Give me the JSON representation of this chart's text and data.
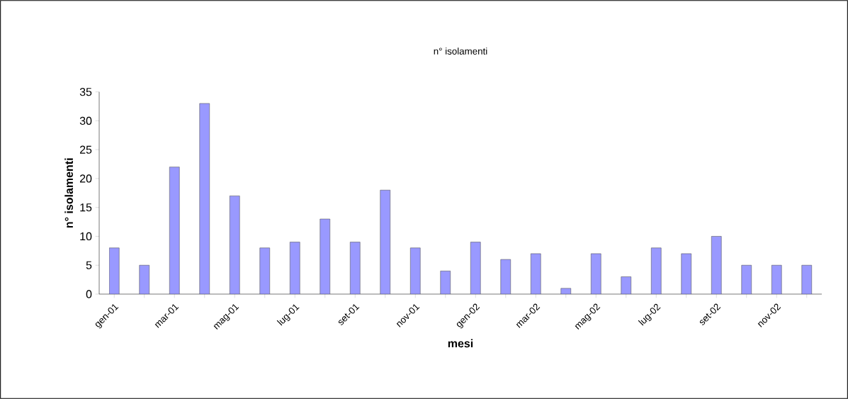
{
  "chart_data": {
    "type": "bar",
    "title": "n° isolamenti",
    "xlabel": "mesi",
    "ylabel": "n° isolamenti",
    "categories": [
      "gen-01",
      null,
      "mar-01",
      null,
      "mag-01",
      null,
      "lug-01",
      null,
      "set-01",
      null,
      "nov-01",
      null,
      "gen-02",
      null,
      "mar-02",
      null,
      "mag-02",
      null,
      "lug-02",
      null,
      "set-02",
      null,
      "nov-02",
      null
    ],
    "values": [
      8,
      5,
      22,
      33,
      17,
      8,
      9,
      13,
      9,
      18,
      8,
      4,
      9,
      6,
      7,
      1,
      7,
      3,
      8,
      7,
      10,
      5,
      5,
      5
    ],
    "color": "#9999ff",
    "ylim": [
      0,
      35
    ],
    "yticks": [
      0,
      5,
      10,
      15,
      20,
      25,
      30,
      35
    ]
  }
}
